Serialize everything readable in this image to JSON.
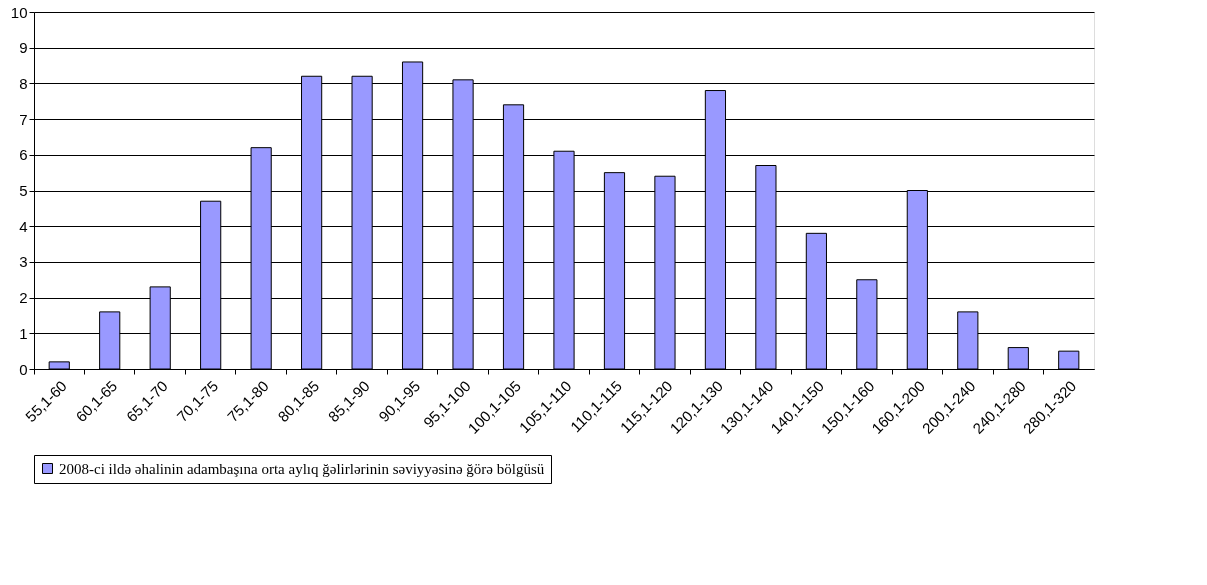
{
  "chart_data": {
    "type": "bar",
    "categories": [
      "55,1-60",
      "60,1-65",
      "65,1-70",
      "70,1-75",
      "75,1-80",
      "80,1-85",
      "85,1-90",
      "90,1-95",
      "95,1-100",
      "100,1-105",
      "105,1-110",
      "110,1-115",
      "115,1-120",
      "120,1-130",
      "130,1-140",
      "140,1-150",
      "150,1-160",
      "160,1-200",
      "200,1-240",
      "240,1-280",
      "280,1-320"
    ],
    "series": [
      {
        "name": "2008-ci ildə əhalinin adambaşına orta aylıq ğəlirlərinin səviyyəsinə ğörə bölgüsü",
        "color": "#9999ff",
        "values": [
          0.2,
          1.6,
          2.3,
          4.7,
          6.2,
          8.2,
          8.2,
          8.6,
          8.1,
          7.4,
          6.1,
          5.5,
          5.4,
          7.8,
          5.7,
          3.8,
          2.5,
          5.0,
          1.6,
          0.6,
          0.5
        ]
      }
    ],
    "ylim": [
      0,
      10
    ],
    "yticks": [
      0,
      1,
      2,
      3,
      4,
      5,
      6,
      7,
      8,
      9,
      10
    ],
    "grid": "y",
    "legend": "bottom"
  }
}
